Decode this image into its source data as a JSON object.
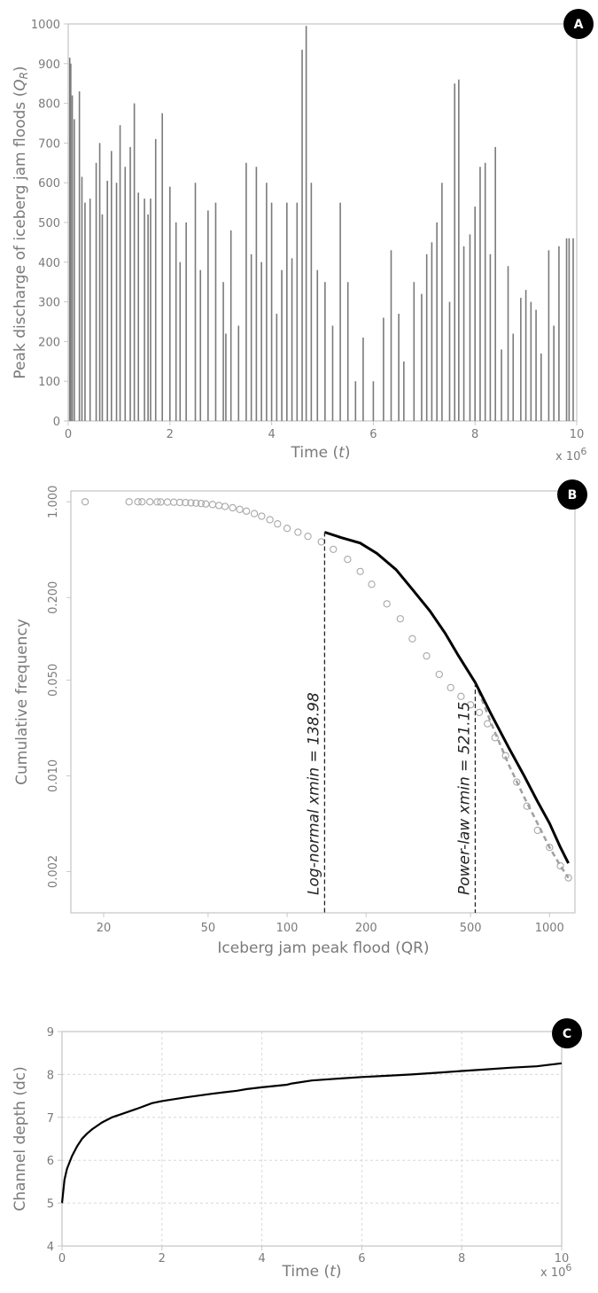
{
  "chart_data": [
    {
      "panel": "A",
      "type": "bar",
      "xlabel": "Time (t)",
      "xlabel_parts": {
        "prefix": "Time (",
        "var": "t",
        "suffix": ")"
      },
      "ylabel": "Peak discharge of iceberg jam floods (QR)",
      "ylabel_parts": {
        "prefix": "Peak discharge of iceberg jam floods  (",
        "var": "Q",
        "sub": "R",
        "suffix": ")"
      },
      "x_multiplier": {
        "base": "x 10",
        "exp": "6"
      },
      "xlim": [
        0,
        10
      ],
      "ylim": [
        0,
        1000
      ],
      "x_ticks": [
        0,
        2,
        4,
        6,
        8,
        10
      ],
      "y_ticks": [
        0,
        100,
        200,
        300,
        400,
        500,
        600,
        700,
        800,
        900,
        1000
      ],
      "bar_color": "#7a7a7a",
      "peaks": {
        "x": [
          0.03,
          0.05,
          0.08,
          0.12,
          0.22,
          0.27,
          0.33,
          0.43,
          0.55,
          0.62,
          0.67,
          0.77,
          0.85,
          0.95,
          1.02,
          1.12,
          1.22,
          1.3,
          1.38,
          1.5,
          1.57,
          1.62,
          1.72,
          1.85,
          2.0,
          2.12,
          2.2,
          2.32,
          2.5,
          2.6,
          2.75,
          2.9,
          3.05,
          3.1,
          3.2,
          3.35,
          3.5,
          3.6,
          3.7,
          3.8,
          3.9,
          4.0,
          4.1,
          4.2,
          4.3,
          4.4,
          4.5,
          4.6,
          4.68,
          4.78,
          4.9,
          5.05,
          5.2,
          5.35,
          5.5,
          5.65,
          5.8,
          6.0,
          6.2,
          6.35,
          6.5,
          6.6,
          6.8,
          6.95,
          7.05,
          7.15,
          7.25,
          7.35,
          7.5,
          7.6,
          7.68,
          7.78,
          7.9,
          8.0,
          8.1,
          8.2,
          8.3,
          8.4,
          8.52,
          8.65,
          8.75,
          8.9,
          9.0,
          9.1,
          9.2,
          9.3,
          9.45,
          9.55,
          9.65,
          9.8,
          9.85,
          9.93
        ],
        "y": [
          915,
          900,
          820,
          760,
          830,
          615,
          550,
          560,
          650,
          700,
          520,
          605,
          680,
          600,
          745,
          640,
          690,
          800,
          575,
          560,
          520,
          560,
          710,
          775,
          590,
          500,
          400,
          500,
          600,
          380,
          530,
          550,
          350,
          220,
          480,
          240,
          650,
          420,
          640,
          400,
          600,
          550,
          270,
          380,
          550,
          410,
          550,
          935,
          995,
          600,
          380,
          350,
          240,
          550,
          350,
          100,
          210,
          100,
          260,
          430,
          270,
          150,
          350,
          320,
          420,
          450,
          500,
          600,
          300,
          850,
          860,
          440,
          470,
          540,
          640,
          650,
          420,
          690,
          180,
          390,
          220,
          310,
          330,
          300,
          280,
          170,
          430,
          240,
          440,
          460,
          460,
          460
        ]
      },
      "badge": "A"
    },
    {
      "panel": "B",
      "type": "scatter",
      "xlabel": "Iceberg jam peak flood (QR)",
      "ylabel": "Cumulative frequency",
      "x_scale": "log",
      "y_scale": "log",
      "xlim": [
        15,
        1250
      ],
      "ylim": [
        0.001,
        1.2
      ],
      "x_ticks": [
        20,
        50,
        100,
        200,
        500,
        1000
      ],
      "y_ticks": [
        0.002,
        0.01,
        0.05,
        0.2,
        1
      ],
      "y_tick_labels": [
        "0.002",
        "0.010",
        "0.050",
        "0.200",
        "1.000"
      ],
      "grid": false,
      "marker_color": "#a8a8a8",
      "observed": {
        "x": [
          17,
          25,
          27,
          28,
          30,
          32,
          33,
          35,
          37,
          39,
          41,
          43,
          45,
          47,
          49,
          52,
          55,
          58,
          62,
          66,
          70,
          75,
          80,
          86,
          92,
          100,
          110,
          120,
          135,
          150,
          170,
          190,
          210,
          240,
          270,
          300,
          340,
          380,
          420,
          460,
          500,
          540,
          580,
          620,
          680,
          750,
          820,
          900,
          1000,
          1100,
          1180
        ],
        "y": [
          1.0,
          1.0,
          1.0,
          1.0,
          1.0,
          0.998,
          0.997,
          0.995,
          0.993,
          0.99,
          0.987,
          0.983,
          0.978,
          0.972,
          0.965,
          0.955,
          0.94,
          0.925,
          0.905,
          0.88,
          0.855,
          0.82,
          0.785,
          0.74,
          0.69,
          0.64,
          0.6,
          0.56,
          0.51,
          0.45,
          0.38,
          0.31,
          0.25,
          0.18,
          0.14,
          0.1,
          0.075,
          0.055,
          0.044,
          0.038,
          0.033,
          0.029,
          0.024,
          0.019,
          0.014,
          0.009,
          0.006,
          0.004,
          0.003,
          0.0022,
          0.0018
        ]
      },
      "series": [
        {
          "name": "Log-normal fit",
          "style": "solid",
          "color": "#000000",
          "x": [
            138.98,
            160,
            190,
            220,
            260,
            300,
            350,
            400,
            450,
            521,
            600,
            700,
            800,
            900,
            1000,
            1100,
            1180
          ],
          "y": [
            0.6,
            0.55,
            0.5,
            0.42,
            0.32,
            0.23,
            0.16,
            0.11,
            0.075,
            0.048,
            0.028,
            0.016,
            0.01,
            0.0065,
            0.0045,
            0.003,
            0.0023
          ]
        },
        {
          "name": "Power-law fit",
          "style": "dashed",
          "color": "#a0a0a0",
          "x": [
            521.15,
            600,
            700,
            800,
            900,
            1000,
            1100,
            1180
          ],
          "y": [
            0.048,
            0.024,
            0.012,
            0.007,
            0.0045,
            0.003,
            0.0022,
            0.0018
          ]
        }
      ],
      "annotations": [
        {
          "text": "Log-normal xmin = 138.98",
          "x": 138.98
        },
        {
          "text": "Power-law xmin = 521.15",
          "x": 521.15
        }
      ],
      "badge": "B"
    },
    {
      "panel": "C",
      "type": "line",
      "xlabel": "Time (t)",
      "xlabel_parts": {
        "prefix": "Time (",
        "var": "t",
        "suffix": ")"
      },
      "ylabel": "Channel depth (dc)",
      "x_multiplier": {
        "base": "x 10",
        "exp": "6"
      },
      "xlim": [
        0,
        10
      ],
      "ylim": [
        4,
        9
      ],
      "x_ticks": [
        0,
        2,
        4,
        6,
        8,
        10
      ],
      "y_ticks": [
        4,
        5,
        6,
        7,
        8,
        9
      ],
      "grid": true,
      "series": [
        {
          "color": "#000000",
          "x": [
            0,
            0.05,
            0.1,
            0.2,
            0.3,
            0.4,
            0.5,
            0.6,
            0.8,
            1.0,
            1.2,
            1.5,
            1.8,
            2.0,
            2.5,
            3.0,
            3.5,
            3.7,
            4.0,
            4.5,
            4.6,
            5.0,
            5.5,
            6.0,
            6.5,
            7.0,
            7.5,
            8.0,
            8.5,
            9.0,
            9.5,
            9.7,
            10.0
          ],
          "y": [
            5.0,
            5.55,
            5.8,
            6.1,
            6.32,
            6.5,
            6.62,
            6.72,
            6.88,
            7.0,
            7.08,
            7.2,
            7.33,
            7.38,
            7.47,
            7.55,
            7.62,
            7.66,
            7.7,
            7.76,
            7.79,
            7.86,
            7.9,
            7.94,
            7.97,
            8.0,
            8.04,
            8.08,
            8.12,
            8.16,
            8.19,
            8.22,
            8.26
          ]
        }
      ],
      "badge": "C"
    }
  ]
}
